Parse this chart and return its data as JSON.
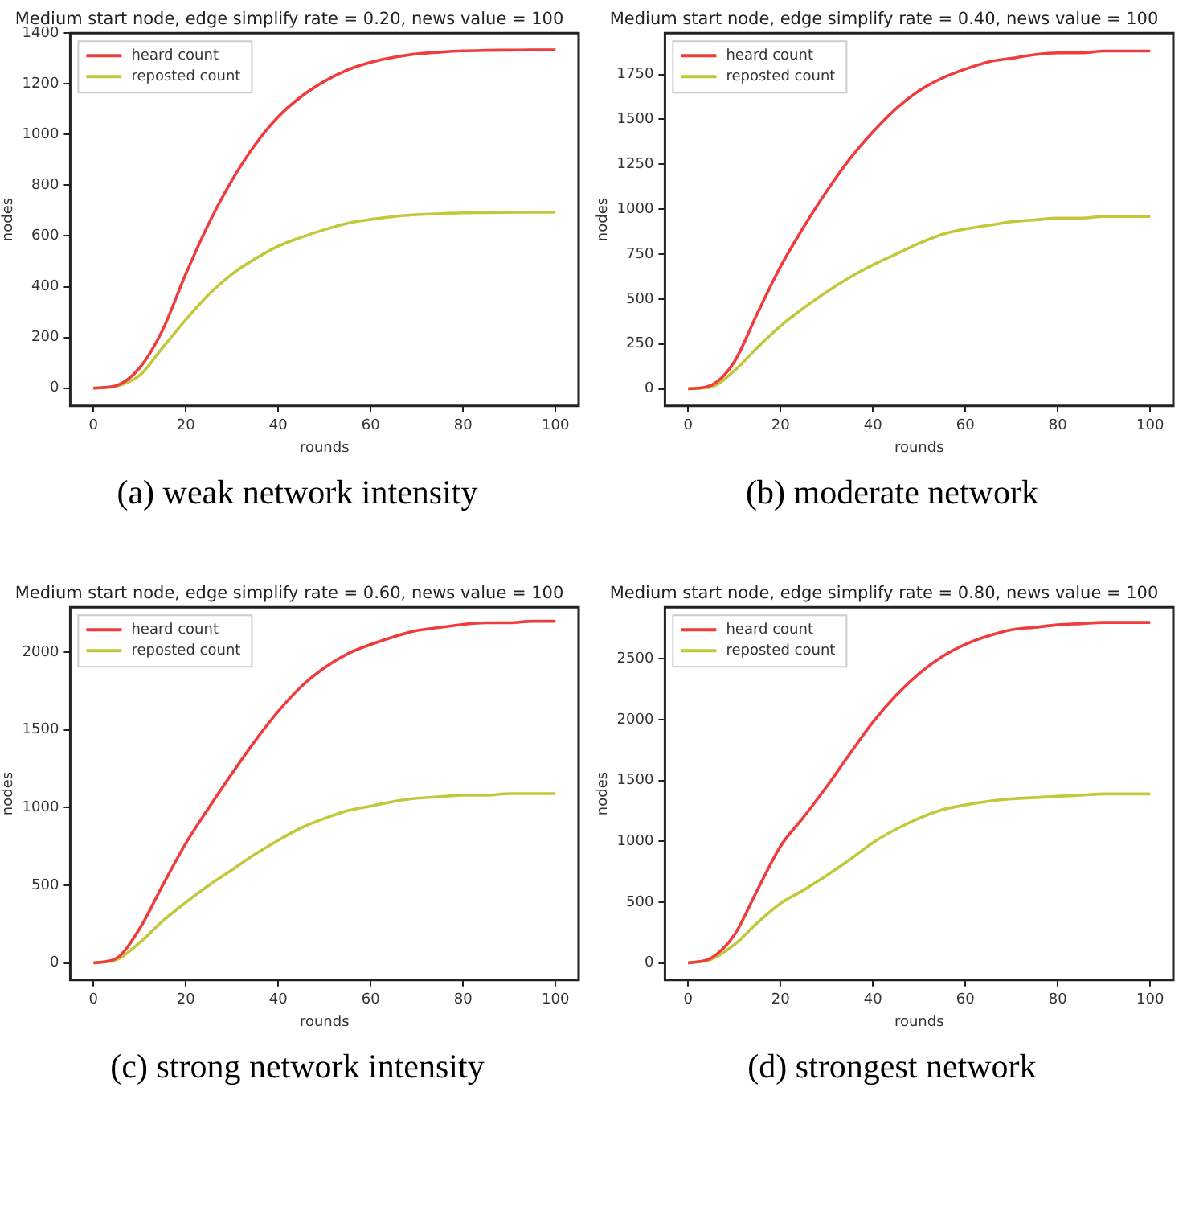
{
  "chart_data": [
    {
      "type": "line",
      "title": "Medium start node, edge simplify rate = 0.20, news value = 100",
      "xlabel": "rounds",
      "ylabel": "nodes",
      "annotations": [
        "(a) weak network intensity"
      ],
      "legend": "top left",
      "grid": false,
      "marker": "none",
      "line_style": "solid",
      "x": [
        0,
        5,
        10,
        15,
        20,
        25,
        30,
        35,
        40,
        45,
        50,
        55,
        60,
        65,
        70,
        75,
        80,
        85,
        90,
        95,
        100
      ],
      "xlim": [
        -5,
        105
      ],
      "xticks": [
        0,
        20,
        40,
        60,
        80,
        100
      ],
      "ylim": [
        -70,
        1400
      ],
      "yticks": [
        0,
        200,
        400,
        600,
        800,
        1000,
        1200,
        1400
      ],
      "series": [
        {
          "name": "heard count",
          "color": "#f03c3c",
          "values": [
            0,
            10,
            80,
            230,
            450,
            650,
            820,
            960,
            1070,
            1150,
            1210,
            1255,
            1285,
            1305,
            1318,
            1325,
            1330,
            1332,
            1333,
            1334,
            1334
          ]
        },
        {
          "name": "reposted count",
          "color": "#c2c83a",
          "values": [
            0,
            8,
            50,
            160,
            270,
            370,
            450,
            510,
            560,
            595,
            625,
            650,
            665,
            677,
            684,
            688,
            691,
            692,
            693,
            694,
            694
          ]
        }
      ]
    },
    {
      "type": "line",
      "title": "Medium start node, edge simplify rate = 0.40, news value = 100",
      "xlabel": "rounds",
      "ylabel": "nodes",
      "annotations": [
        "(b) moderate network"
      ],
      "legend": "top left",
      "grid": false,
      "marker": "none",
      "line_style": "solid",
      "x": [
        0,
        5,
        10,
        15,
        20,
        25,
        30,
        35,
        40,
        45,
        50,
        55,
        60,
        65,
        70,
        75,
        80,
        85,
        90,
        95,
        100
      ],
      "xlim": [
        -5,
        105
      ],
      "xticks": [
        0,
        20,
        40,
        60,
        80,
        100
      ],
      "ylim": [
        -95,
        1980
      ],
      "yticks": [
        0,
        250,
        500,
        750,
        1000,
        1250,
        1500,
        1750
      ],
      "series": [
        {
          "name": "heard count",
          "color": "#f03c3c",
          "values": [
            0,
            20,
            150,
            420,
            680,
            900,
            1100,
            1280,
            1430,
            1560,
            1660,
            1730,
            1780,
            1820,
            1840,
            1860,
            1870,
            1870,
            1880,
            1880,
            1880
          ]
        },
        {
          "name": "reposted count",
          "color": "#c2c83a",
          "values": [
            0,
            10,
            100,
            230,
            350,
            450,
            540,
            620,
            690,
            750,
            810,
            860,
            890,
            910,
            930,
            940,
            950,
            950,
            960,
            960,
            960
          ]
        }
      ]
    },
    {
      "type": "line",
      "title": "Medium start node, edge simplify rate = 0.60, news value = 100",
      "xlabel": "rounds",
      "ylabel": "nodes",
      "annotations": [
        "(c) strong network intensity"
      ],
      "legend": "top left",
      "grid": false,
      "marker": "none",
      "line_style": "solid",
      "x": [
        0,
        5,
        10,
        15,
        20,
        25,
        30,
        35,
        40,
        45,
        50,
        55,
        60,
        65,
        70,
        75,
        80,
        85,
        90,
        95,
        100
      ],
      "xlim": [
        -5,
        105
      ],
      "xticks": [
        0,
        20,
        40,
        60,
        80,
        100
      ],
      "ylim": [
        -110,
        2290
      ],
      "yticks": [
        0,
        500,
        1000,
        1500,
        2000
      ],
      "series": [
        {
          "name": "heard count",
          "color": "#f03c3c",
          "values": [
            0,
            30,
            220,
            500,
            770,
            1000,
            1220,
            1430,
            1620,
            1780,
            1900,
            1990,
            2050,
            2100,
            2140,
            2160,
            2180,
            2190,
            2190,
            2200,
            2200
          ]
        },
        {
          "name": "reposted count",
          "color": "#c2c83a",
          "values": [
            0,
            20,
            130,
            270,
            390,
            500,
            600,
            700,
            790,
            870,
            930,
            980,
            1010,
            1040,
            1060,
            1070,
            1080,
            1080,
            1090,
            1090,
            1090
          ]
        }
      ]
    },
    {
      "type": "line",
      "title": "Medium start node, edge simplify rate = 0.80, news value = 100",
      "xlabel": "rounds",
      "ylabel": "nodes",
      "annotations": [
        "(d) strongest network"
      ],
      "legend": "top left",
      "grid": false,
      "marker": "none",
      "line_style": "solid",
      "x": [
        0,
        5,
        10,
        15,
        20,
        25,
        30,
        35,
        40,
        45,
        50,
        55,
        60,
        65,
        70,
        75,
        80,
        85,
        90,
        95,
        100
      ],
      "xlim": [
        -5,
        105
      ],
      "xticks": [
        0,
        20,
        40,
        60,
        80,
        100
      ],
      "ylim": [
        -140,
        2925
      ],
      "yticks": [
        0,
        500,
        1000,
        1500,
        2000,
        2500
      ],
      "series": [
        {
          "name": "heard count",
          "color": "#f03c3c",
          "values": [
            0,
            40,
            230,
            600,
            960,
            1200,
            1450,
            1720,
            1980,
            2200,
            2380,
            2520,
            2620,
            2690,
            2740,
            2760,
            2780,
            2790,
            2800,
            2800,
            2800
          ]
        },
        {
          "name": "reposted count",
          "color": "#c2c83a",
          "values": [
            0,
            30,
            150,
            330,
            490,
            600,
            720,
            850,
            990,
            1100,
            1190,
            1260,
            1300,
            1330,
            1350,
            1360,
            1370,
            1380,
            1390,
            1390,
            1390
          ]
        }
      ]
    }
  ]
}
